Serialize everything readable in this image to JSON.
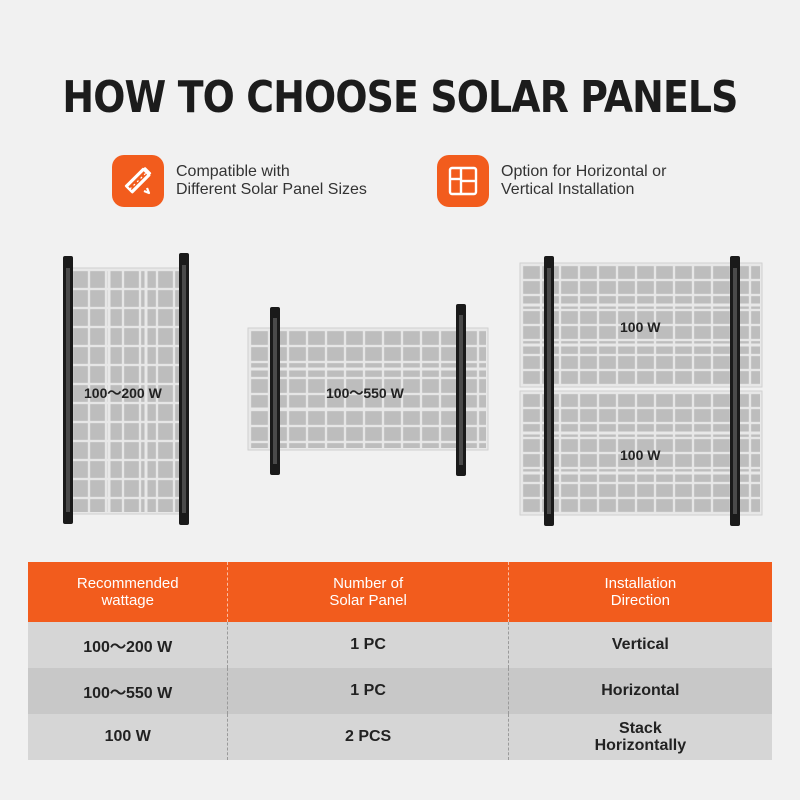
{
  "title": "HOW TO CHOOSE SOLAR PANELS",
  "features": [
    {
      "icon": "ruler-pencil-icon",
      "lines": [
        "Compatible with",
        "Different Solar Panel Sizes"
      ]
    },
    {
      "icon": "layout-grid-icon",
      "lines": [
        "Option for Horizontal or",
        "Vertical Installation"
      ]
    }
  ],
  "panels": {
    "vertical_label": "100～200 W",
    "horizontal_label": "100～550 W",
    "stack_top_label": "100 W",
    "stack_bottom_label": "100 W"
  },
  "table": {
    "headers": [
      [
        "Recommended",
        "wattage"
      ],
      [
        "Number of",
        "Solar Panel"
      ],
      [
        "Installation",
        "Direction"
      ]
    ],
    "rows": [
      {
        "wattage": "100～200 W",
        "count": "1 PC",
        "direction": [
          "Vertical"
        ]
      },
      {
        "wattage": "100～550 W",
        "count": "1 PC",
        "direction": [
          "Horizontal"
        ]
      },
      {
        "wattage": "100 W",
        "count": "2 PCS",
        "direction": [
          "Stack",
          "Horizontally"
        ]
      }
    ]
  },
  "colors": {
    "accent": "#f25c1d",
    "panel": "#c9c9c9",
    "bracket": "#1a1a1a"
  }
}
